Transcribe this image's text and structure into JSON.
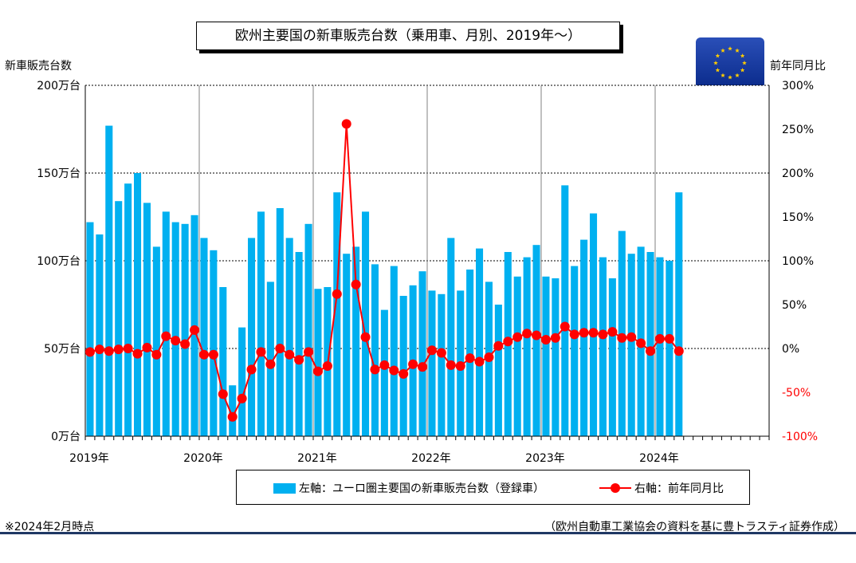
{
  "title": "欧州主要国の新車販売台数（乗用車、月別、2019年～）",
  "left_axis_title": "新車販売台数",
  "right_axis_title": "前年同月比",
  "legend": {
    "bar_label": "左軸：ユーロ圏主要国の新車販売台数（登録車）",
    "line_label": "右軸：前年同月比"
  },
  "note_left": "※2024年2月時点",
  "note_right": "（欧州自動車工業協会の資料を基に豊トラスティ証券作成）",
  "colors": {
    "bar": "#00b0f0",
    "line": "#ff0000",
    "negative_tick": "#ff0000",
    "flag_blue": "#003399",
    "flag_star": "#ffcc00"
  },
  "flag_icon": "eu-flag-icon",
  "chart_data": {
    "type": "bar+line",
    "title": "欧州主要国の新車販売台数（乗用車、月別、2019年～）",
    "x_labels": [
      "2019年",
      "2020年",
      "2021年",
      "2022年",
      "2023年",
      "2024年"
    ],
    "y_left": {
      "label": "新車販売台数",
      "ylim": [
        0,
        200
      ],
      "ticks": [
        {
          "value": 0,
          "label": "0万台"
        },
        {
          "value": 50,
          "label": "50万台"
        },
        {
          "value": 100,
          "label": "100万台"
        },
        {
          "value": 150,
          "label": "150万台"
        },
        {
          "value": 200,
          "label": "200万台"
        }
      ]
    },
    "y_right": {
      "label": "前年同月比",
      "ylim": [
        -100,
        300
      ],
      "ticks": [
        {
          "value": 300,
          "label": "300%"
        },
        {
          "value": 250,
          "label": "250%"
        },
        {
          "value": 200,
          "label": "200%"
        },
        {
          "value": 150,
          "label": "150%"
        },
        {
          "value": 100,
          "label": "100%"
        },
        {
          "value": 50,
          "label": "50%"
        },
        {
          "value": 0,
          "label": "0%"
        },
        {
          "value": -50,
          "label": "-50%"
        },
        {
          "value": -100,
          "label": "-100%"
        }
      ]
    },
    "months_per_axis": 72,
    "grid": "dashed horizontal, vertical at year boundaries",
    "series": [
      {
        "name": "左軸：ユーロ圏主要国の新車販売台数（登録車）",
        "type": "bar",
        "axis": "left",
        "values": [
          122,
          115,
          177,
          134,
          144,
          150,
          133,
          108,
          128,
          122,
          121,
          126,
          113,
          106,
          85,
          29,
          62,
          113,
          128,
          88,
          130,
          113,
          105,
          121,
          84,
          85,
          139,
          104,
          108,
          128,
          98,
          72,
          97,
          80,
          86,
          94,
          83,
          81,
          113,
          83,
          95,
          107,
          88,
          75,
          105,
          91,
          102,
          109,
          91,
          90,
          143,
          97,
          112,
          127,
          102,
          90,
          117,
          104,
          108,
          105,
          102,
          100,
          139
        ]
      },
      {
        "name": "右軸：前年同月比",
        "type": "line",
        "axis": "right",
        "values": [
          -4,
          -1,
          -3,
          -1,
          0,
          -6,
          1,
          -7,
          14,
          9,
          5,
          21,
          -7,
          -7,
          -52,
          -78,
          -57,
          -24,
          -4,
          -18,
          0,
          -7,
          -13,
          -4,
          -26,
          -20,
          62,
          256,
          73,
          13,
          -24,
          -19,
          -25,
          -29,
          -18,
          -21,
          -2,
          -5,
          -19,
          -20,
          -11,
          -15,
          -10,
          3,
          8,
          13,
          17,
          15,
          10,
          12,
          25,
          16,
          18,
          18,
          16,
          19,
          12,
          13,
          6,
          -3,
          11,
          11,
          -3
        ]
      }
    ]
  }
}
